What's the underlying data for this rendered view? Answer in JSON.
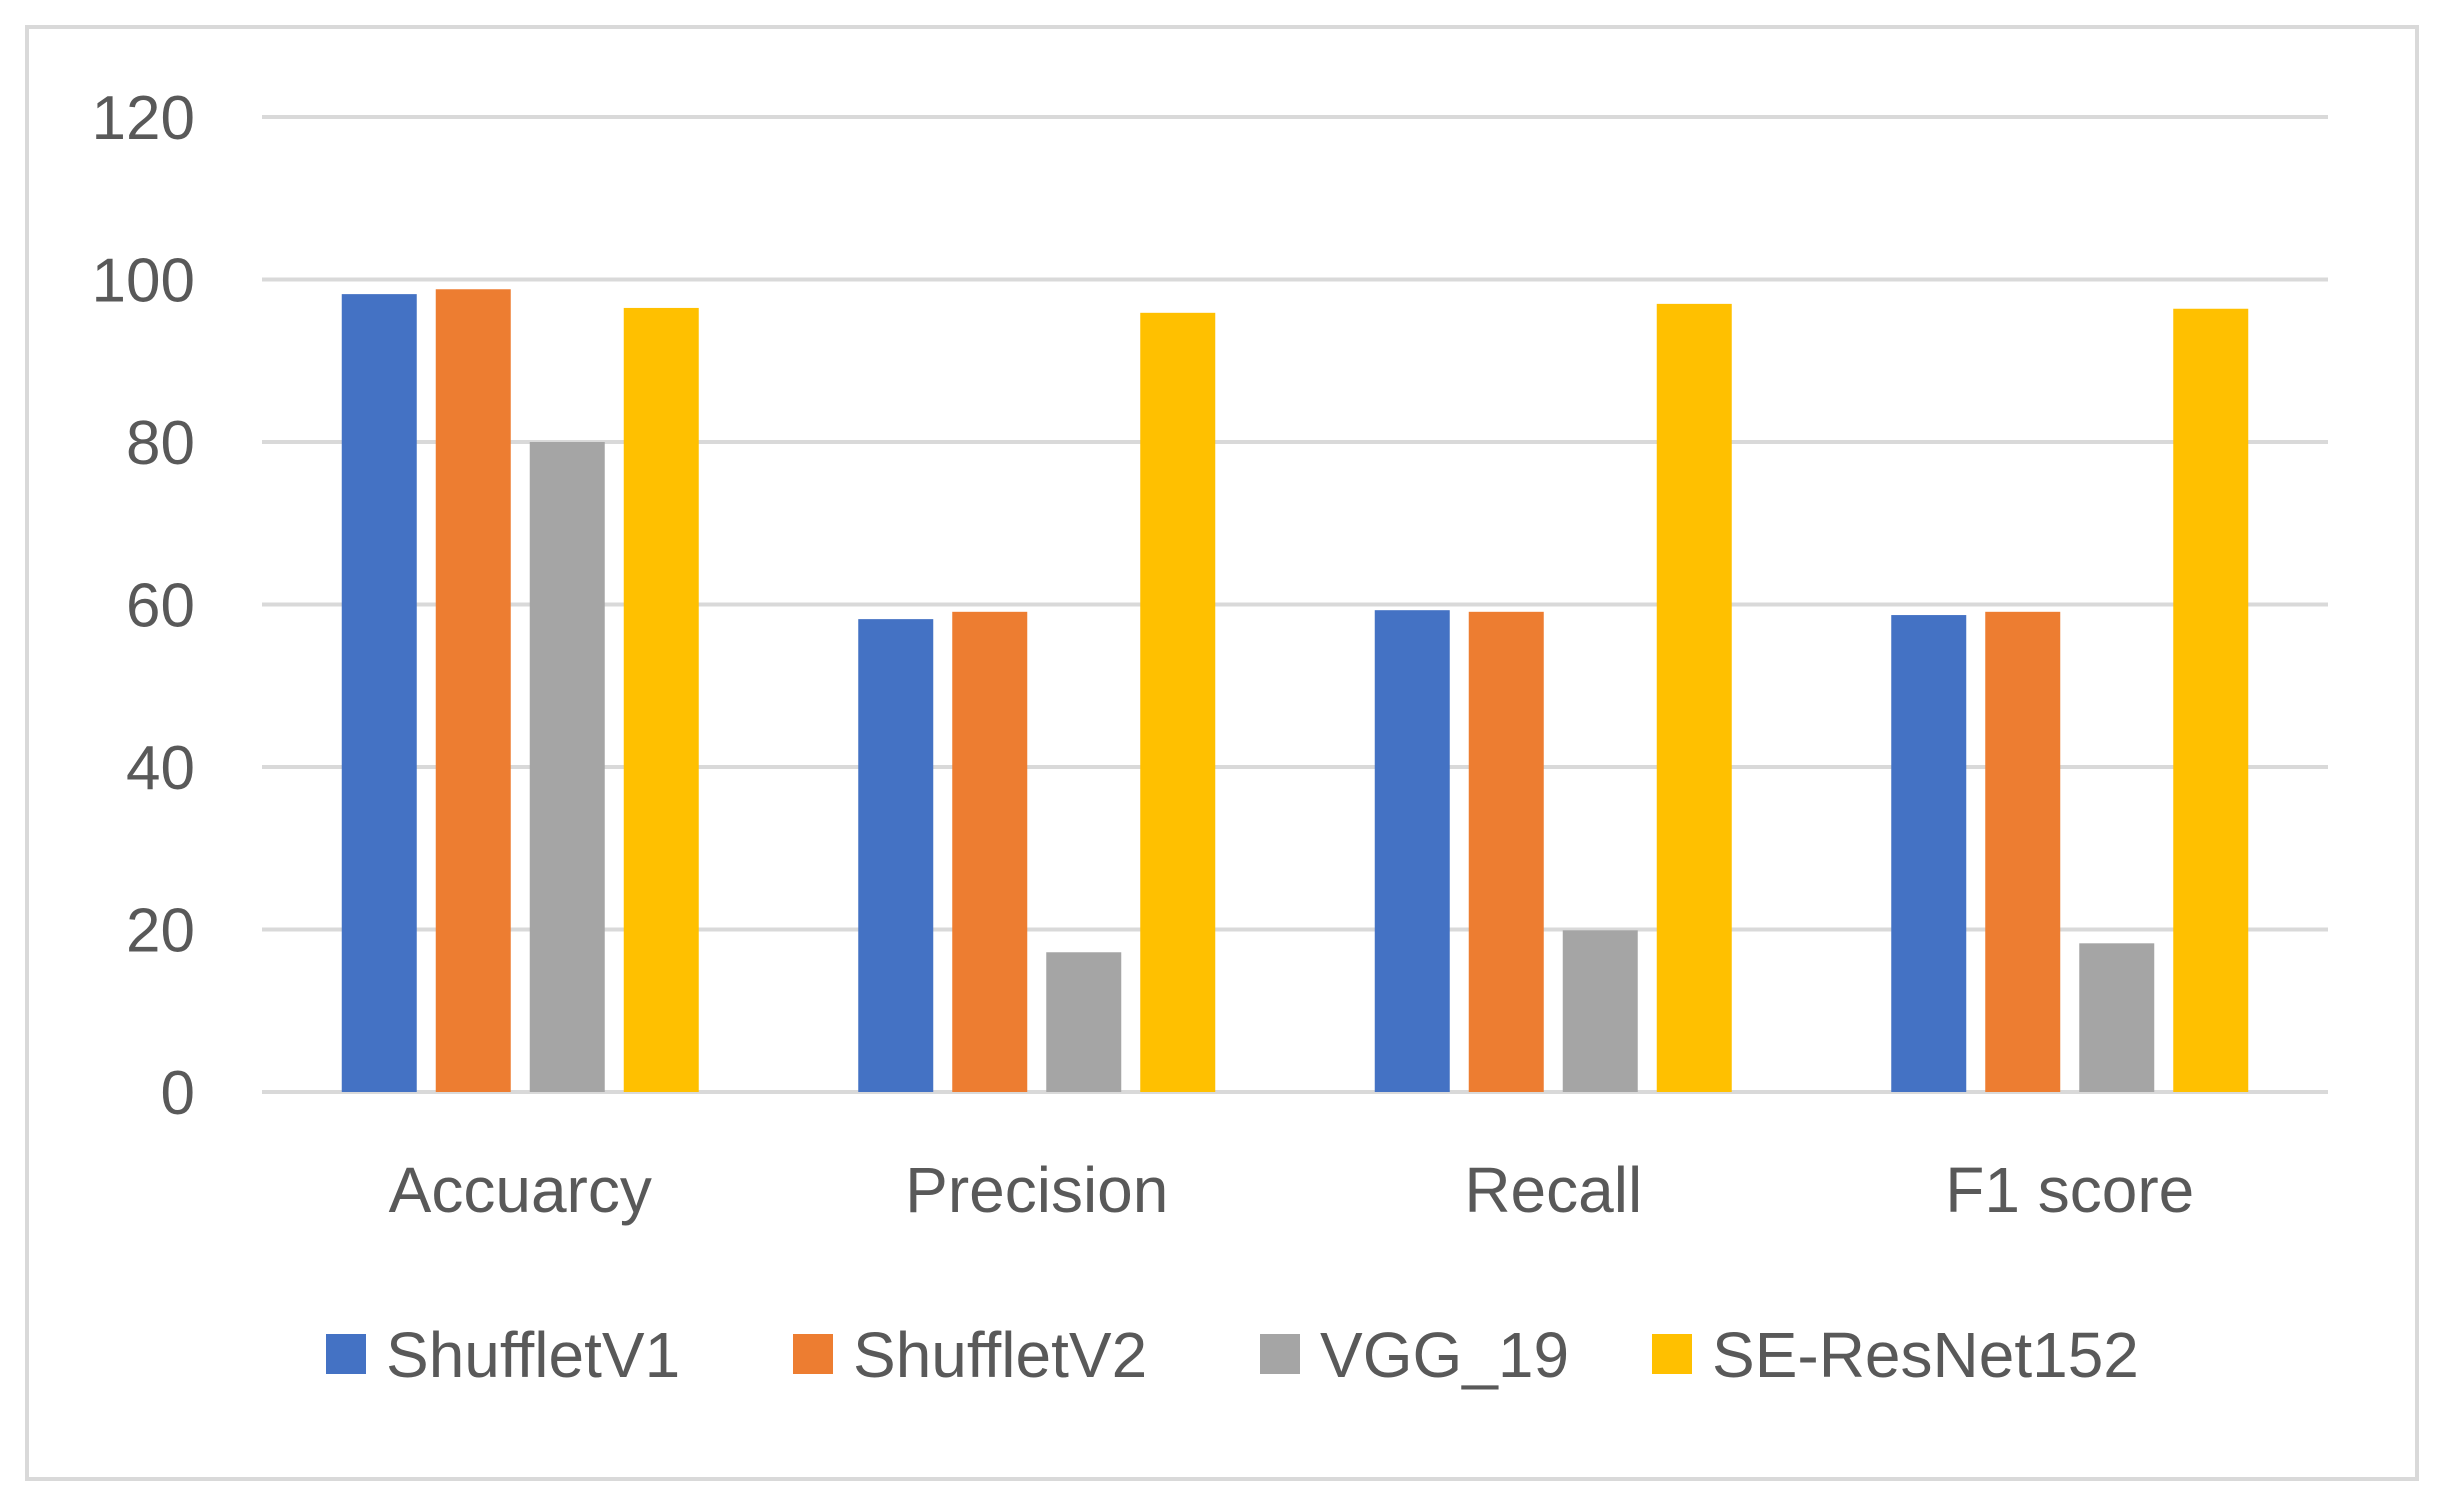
{
  "chart_data": {
    "type": "bar",
    "title": "",
    "xlabel": "",
    "ylabel": "",
    "ylim": [
      0,
      120
    ],
    "yticks": [
      0,
      20,
      40,
      60,
      80,
      100,
      120
    ],
    "grid": true,
    "legend_position": "bottom",
    "categories": [
      "Accuarcy",
      "Precision",
      "Recall",
      "F1 score"
    ],
    "series": [
      {
        "name": "ShuffletV1",
        "color": "#4472c4",
        "values": [
          98.2,
          58.2,
          59.3,
          58.7
        ]
      },
      {
        "name": "ShuffletV2",
        "color": "#ed7d31",
        "values": [
          98.8,
          59.1,
          59.1,
          59.1
        ]
      },
      {
        "name": "VGG_19",
        "color": "#a5a5a5",
        "values": [
          80.0,
          17.2,
          19.9,
          18.3
        ]
      },
      {
        "name": "SE-ResNet152",
        "color": "#ffc000",
        "values": [
          96.5,
          95.9,
          97.0,
          96.4
        ]
      }
    ]
  }
}
